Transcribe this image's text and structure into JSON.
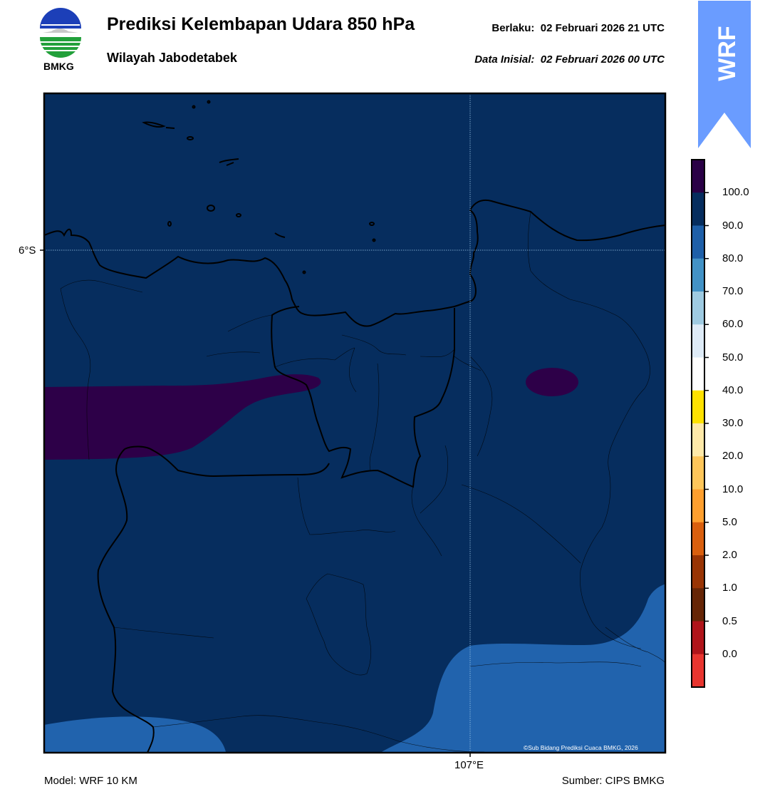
{
  "header": {
    "title": "Prediksi Kelembapan Udara 850 hPa",
    "region": "Wilayah Jabodetabek",
    "valid_label": "Berlaku:",
    "valid_time": "02 Februari 2026 21 UTC",
    "init_label": "Data Inisial:",
    "init_time": "02 Februari 2026 00 UTC"
  },
  "logo": {
    "text": "BMKG"
  },
  "badge": {
    "text": "WRF",
    "color": "#6a9cff"
  },
  "map": {
    "lat_label": "6°S",
    "lon_label": "107°E",
    "credit": "©Sub Bidang Prediksi Cuaca BMKG, 2026",
    "base_color": "#062d5e"
  },
  "colorbar": {
    "labels": [
      "100.0",
      "90.0",
      "80.0",
      "70.0",
      "60.0",
      "50.0",
      "40.0",
      "30.0",
      "20.0",
      "10.0",
      "5.0",
      "2.0",
      "1.0",
      "0.5",
      "0.0"
    ],
    "colors": [
      "#2a0046",
      "#062d5e",
      "#1e5fa8",
      "#4292c6",
      "#9ecae1",
      "#deebf7",
      "#ffffff",
      "#ffe100",
      "#ffe9a8",
      "#ffc65a",
      "#ff9f2e",
      "#d95f0e",
      "#993404",
      "#662506",
      "#b0141a",
      "#e8352f"
    ]
  },
  "footer": {
    "model": "Model: WRF 10 KM",
    "source": "Sumber: CIPS BMKG"
  }
}
